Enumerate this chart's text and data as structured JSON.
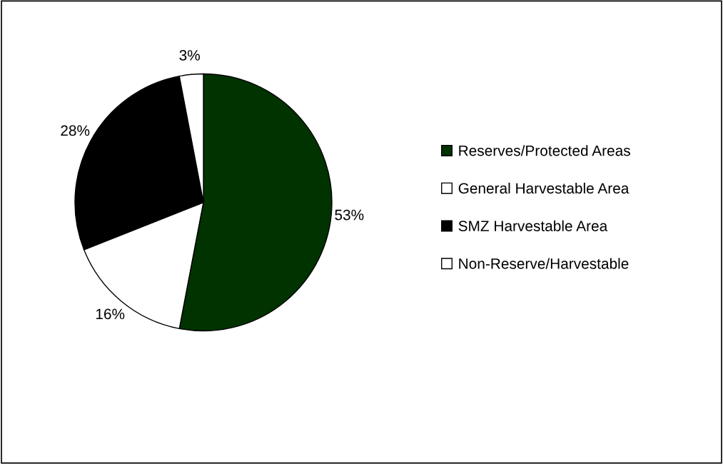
{
  "chart_data": {
    "type": "pie",
    "categories": [
      "Reserves/Protected Areas",
      "General Harvestable Area",
      "SMZ Harvestable Area",
      "Non-Reserve/Harvestable"
    ],
    "values": [
      53,
      16,
      28,
      3
    ],
    "colors": [
      "#003300",
      "#ffffff",
      "#000000",
      "#ffffff"
    ],
    "value_labels": [
      "53%",
      "16%",
      "28%",
      "3%"
    ],
    "legend": "right"
  }
}
